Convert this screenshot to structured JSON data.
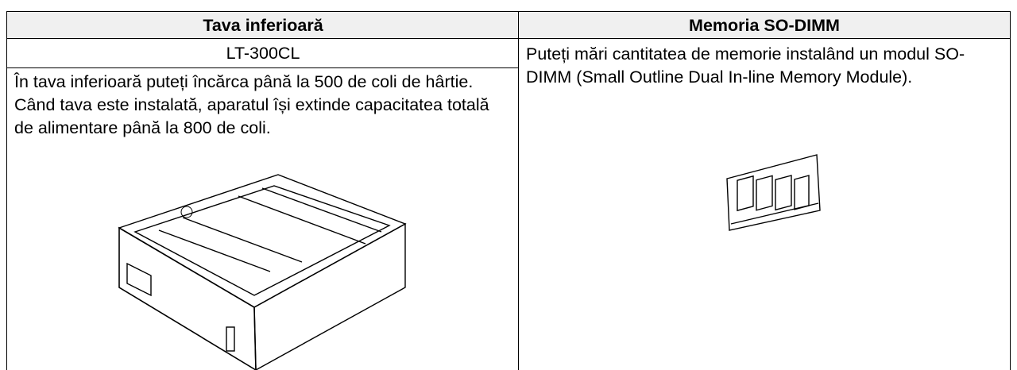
{
  "table": {
    "header": [
      "Tava inferioară",
      "Memoria SO-DIMM"
    ],
    "left": {
      "model": "LT-300CL",
      "text": "În tava inferioară puteți încărca până la 500 de coli de hârtie. Când tava este instalată, aparatul își extinde capacitatea totală de alimentare până la 800 de coli."
    },
    "right": {
      "text": "Puteți mări cantitatea de memorie instalând un modul SO-DIMM (Small Outline Dual In-line Memory Module)."
    }
  }
}
